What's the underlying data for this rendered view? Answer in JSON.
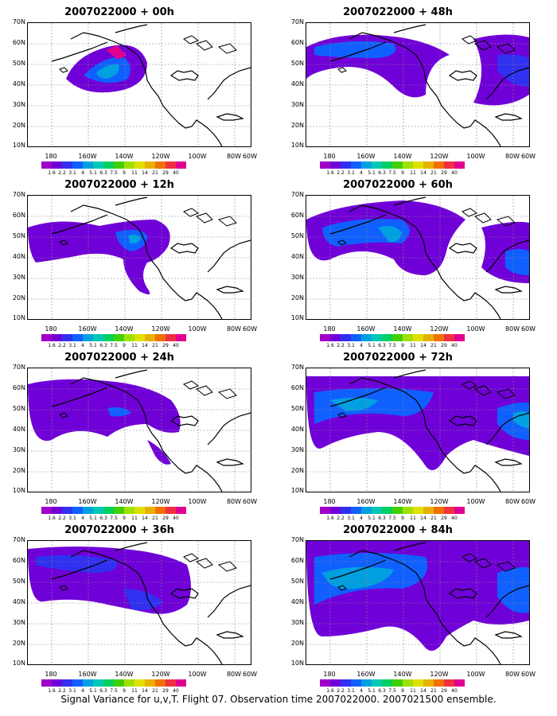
{
  "caption": "Signal Variance for u,v,T. Flight 07. Observation time 2007022000. 2007021500 ensemble.",
  "lat_labels": [
    "70N",
    "60N",
    "50N",
    "40N",
    "30N",
    "20N",
    "10N"
  ],
  "lon_labels": [
    "180",
    "160W",
    "140W",
    "120W",
    "100W",
    "80W",
    "60W"
  ],
  "colorbar": {
    "labels": [
      "1.6",
      "2.2",
      "3.1",
      "4",
      "5.1",
      "6.3",
      "7.5",
      "9",
      "11",
      "14",
      "21",
      "29",
      "40"
    ],
    "colors": [
      "#a000c8",
      "#7000d8",
      "#3030f0",
      "#1060ff",
      "#00a0e0",
      "#00c8b4",
      "#00d060",
      "#40d000",
      "#a0e000",
      "#e0e000",
      "#e8b000",
      "#f07000",
      "#f03040",
      "#e00090"
    ]
  },
  "panels": [
    {
      "title": "2007022000 + 00h"
    },
    {
      "title": "2007022000 + 48h"
    },
    {
      "title": "2007022000 + 12h"
    },
    {
      "title": "2007022000 + 60h"
    },
    {
      "title": "2007022000 + 24h"
    },
    {
      "title": "2007022000 + 72h"
    },
    {
      "title": "2007022000 + 36h"
    },
    {
      "title": "2007022000 + 84h"
    }
  ]
}
